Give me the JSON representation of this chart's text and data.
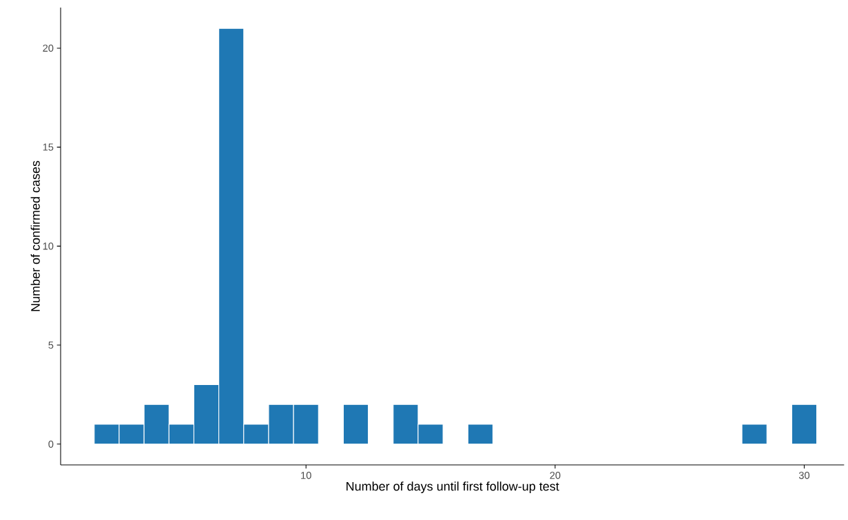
{
  "chart_data": {
    "type": "histogram",
    "xlabel": "Number of days until first follow-up test",
    "ylabel": "Number of confirmed cases",
    "bins": [
      1.5,
      2.5,
      3.5,
      4.5,
      5.5,
      6.5,
      7.5,
      8.5,
      9.5,
      10.5,
      11.5,
      12.5,
      13.5,
      14.5,
      15.5,
      16.5,
      17.5,
      18.5,
      19.5,
      20.5,
      21.5,
      22.5,
      23.5,
      24.5,
      25.5,
      26.5,
      27.5,
      28.5,
      29.5,
      30.5
    ],
    "values": [
      1,
      1,
      2,
      1,
      3,
      21,
      1,
      2,
      2,
      0,
      2,
      0,
      2,
      1,
      0,
      1,
      0,
      0,
      0,
      0,
      0,
      0,
      0,
      0,
      0,
      0,
      1,
      0,
      2
    ],
    "color": "#1f78b4",
    "xlim": [
      0.15,
      31.6
    ],
    "ylim": [
      -1.05,
      22.05
    ],
    "xticks": [
      10,
      20,
      30
    ],
    "yticks": [
      0,
      5,
      10,
      15,
      20
    ],
    "grid": false
  }
}
